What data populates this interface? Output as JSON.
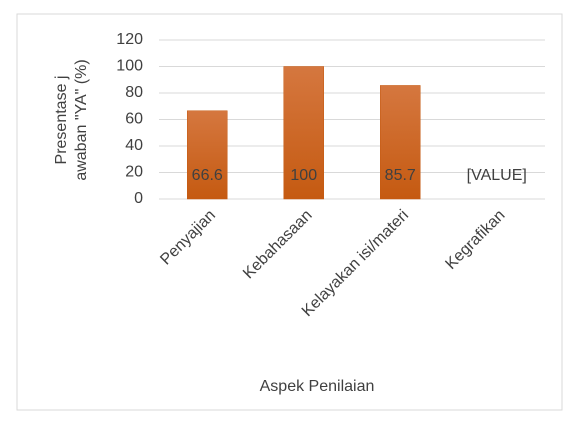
{
  "chart_data": {
    "type": "bar",
    "categories": [
      "Penyajian",
      "Kebahasaan",
      "Kelayakan isi/materi",
      "Kegrafikan"
    ],
    "values": [
      66.6,
      100,
      85.7,
      null
    ],
    "value_labels": [
      "66.6",
      "100",
      "85.7",
      "[VALUE]"
    ],
    "color": "#c55a11",
    "ylim": [
      0,
      120
    ],
    "yticks": [
      0,
      20,
      40,
      60,
      80,
      100,
      120
    ],
    "grid": true,
    "ylabel": [
      "Presentase j",
      "awaban \"YA\" (%)"
    ],
    "xlabel": "Aspek Penilaian"
  }
}
